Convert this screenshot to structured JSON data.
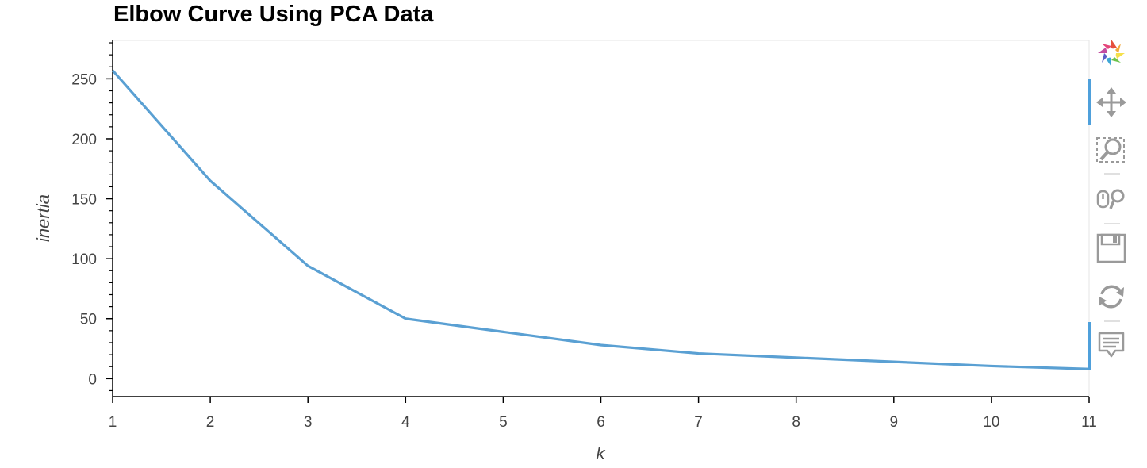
{
  "chart_data": {
    "type": "line",
    "title": "Elbow Curve Using PCA Data",
    "xlabel": "k",
    "ylabel": "inertia",
    "x": [
      1,
      2,
      3,
      4,
      5,
      6,
      7,
      8,
      9,
      10,
      11
    ],
    "series": [
      {
        "values": [
          257,
          165,
          94,
          50,
          39,
          28,
          21,
          17.5,
          14,
          10.5,
          8
        ]
      }
    ],
    "xlim": [
      1,
      11
    ],
    "ylim": [
      -15,
      282
    ],
    "xticks": [
      1,
      2,
      3,
      4,
      5,
      6,
      7,
      8,
      9,
      10,
      11
    ],
    "yticks": [
      0,
      50,
      100,
      150,
      200,
      250
    ],
    "grid": false,
    "line_color": "#5aa0d3"
  },
  "toolbar": {
    "tools": [
      "bokeh-logo-icon",
      "pan-icon",
      "box-zoom-icon",
      "wheel-zoom-icon",
      "save-icon",
      "reset-icon",
      "hover-icon"
    ]
  }
}
